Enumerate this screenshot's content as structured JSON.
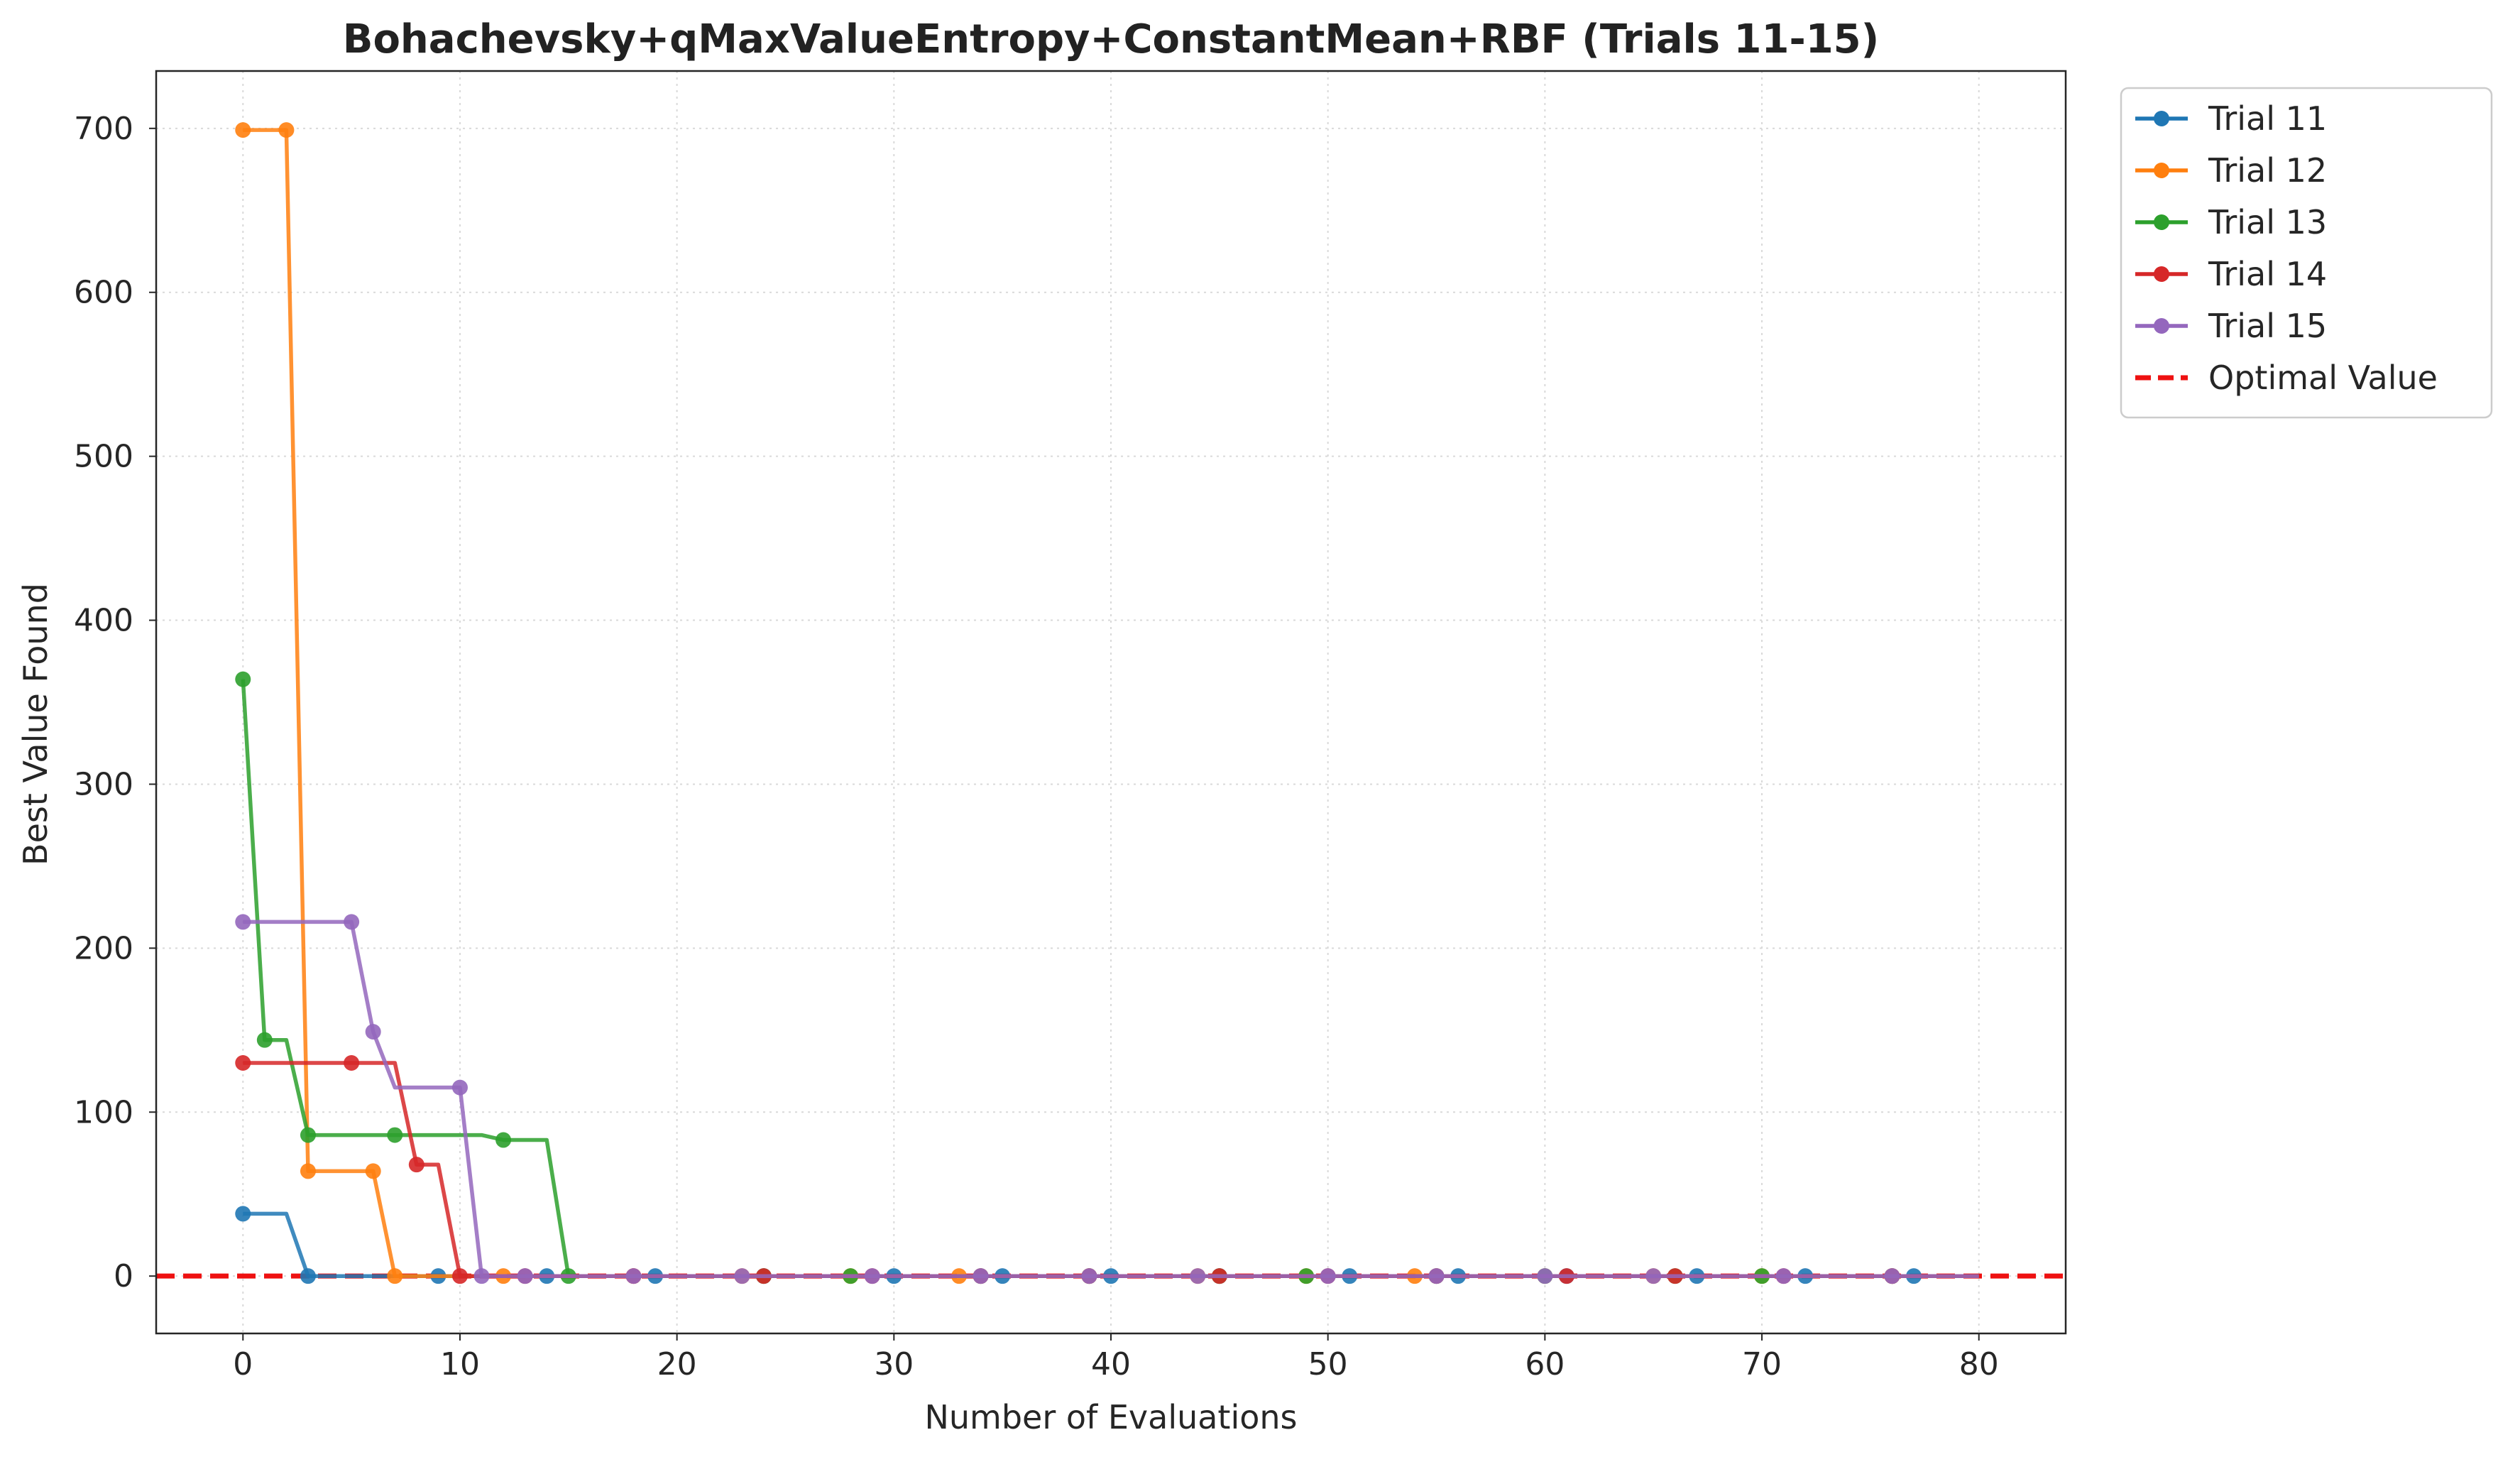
{
  "chart_data": {
    "type": "line",
    "title": "Bohachevsky+qMaxValueEntropy+ConstantMean+RBF (Trials 11-15)",
    "xlabel": "Number of Evaluations",
    "ylabel": "Best Value Found",
    "xlim": [
      -4,
      84
    ],
    "ylim": [
      -35,
      735
    ],
    "xticks": [
      0,
      10,
      20,
      30,
      40,
      50,
      60,
      70,
      80
    ],
    "yticks": [
      0,
      100,
      200,
      300,
      400,
      500,
      600,
      700
    ],
    "grid": true,
    "legend_position": "outside-top-right",
    "series": [
      {
        "name": "Trial 11",
        "color": "#1f77b4",
        "x": [
          0,
          1,
          2,
          3,
          80
        ],
        "y": [
          38,
          38,
          38,
          0,
          0
        ],
        "markers_x": [
          0,
          3,
          9,
          14,
          19,
          24,
          30,
          35,
          40,
          45,
          51,
          56,
          61,
          67,
          72,
          77
        ],
        "markers_y": [
          38,
          0,
          0,
          0,
          0,
          0,
          0,
          0,
          0,
          0,
          0,
          0,
          0,
          0,
          0,
          0
        ]
      },
      {
        "name": "Trial 12",
        "color": "#ff7f0e",
        "x": [
          0,
          1,
          2,
          3,
          4,
          5,
          6,
          7,
          80
        ],
        "y": [
          699,
          699,
          699,
          64,
          64,
          64,
          64,
          0,
          0
        ],
        "markers_x": [
          0,
          2,
          3,
          6,
          7,
          12,
          18,
          23,
          28,
          33,
          39,
          44,
          49,
          54,
          60,
          65,
          70,
          76
        ],
        "markers_y": [
          699,
          699,
          64,
          64,
          0,
          0,
          0,
          0,
          0,
          0,
          0,
          0,
          0,
          0,
          0,
          0,
          0,
          0
        ]
      },
      {
        "name": "Trial 13",
        "color": "#2ca02c",
        "x": [
          0,
          1,
          2,
          3,
          4,
          5,
          6,
          7,
          8,
          9,
          10,
          11,
          12,
          13,
          14,
          15,
          80
        ],
        "y": [
          364,
          144,
          144,
          86,
          86,
          86,
          86,
          86,
          86,
          86,
          86,
          86,
          83,
          83,
          83,
          0,
          0
        ],
        "markers_x": [
          0,
          1,
          3,
          7,
          12,
          15,
          24,
          28,
          34,
          39,
          45,
          49,
          55,
          60,
          66,
          70,
          76
        ],
        "markers_y": [
          364,
          144,
          86,
          86,
          83,
          0,
          0,
          0,
          0,
          0,
          0,
          0,
          0,
          0,
          0,
          0,
          0
        ]
      },
      {
        "name": "Trial 14",
        "color": "#d62728",
        "x": [
          0,
          1,
          2,
          3,
          4,
          5,
          6,
          7,
          8,
          9,
          10,
          80
        ],
        "y": [
          130,
          130,
          130,
          130,
          130,
          130,
          130,
          130,
          68,
          68,
          0,
          0
        ],
        "markers_x": [
          0,
          5,
          8,
          10,
          13,
          18,
          24,
          29,
          34,
          39,
          45,
          50,
          55,
          61,
          66,
          71,
          76
        ],
        "markers_y": [
          130,
          130,
          68,
          0,
          0,
          0,
          0,
          0,
          0,
          0,
          0,
          0,
          0,
          0,
          0,
          0,
          0
        ]
      },
      {
        "name": "Trial 15",
        "color": "#9467bd",
        "x": [
          0,
          1,
          2,
          3,
          4,
          5,
          6,
          7,
          8,
          9,
          10,
          11,
          80
        ],
        "y": [
          216,
          216,
          216,
          216,
          216,
          216,
          149,
          115,
          115,
          115,
          115,
          0,
          0
        ],
        "markers_x": [
          0,
          5,
          6,
          10,
          11,
          13,
          18,
          23,
          29,
          34,
          39,
          44,
          50,
          55,
          60,
          65,
          71,
          76
        ],
        "markers_y": [
          216,
          216,
          149,
          115,
          0,
          0,
          0,
          0,
          0,
          0,
          0,
          0,
          0,
          0,
          0,
          0,
          0,
          0
        ]
      }
    ],
    "reference_line": {
      "name": "Optimal Value",
      "y": 0,
      "color": "#ee1111",
      "style": "dashed"
    }
  }
}
